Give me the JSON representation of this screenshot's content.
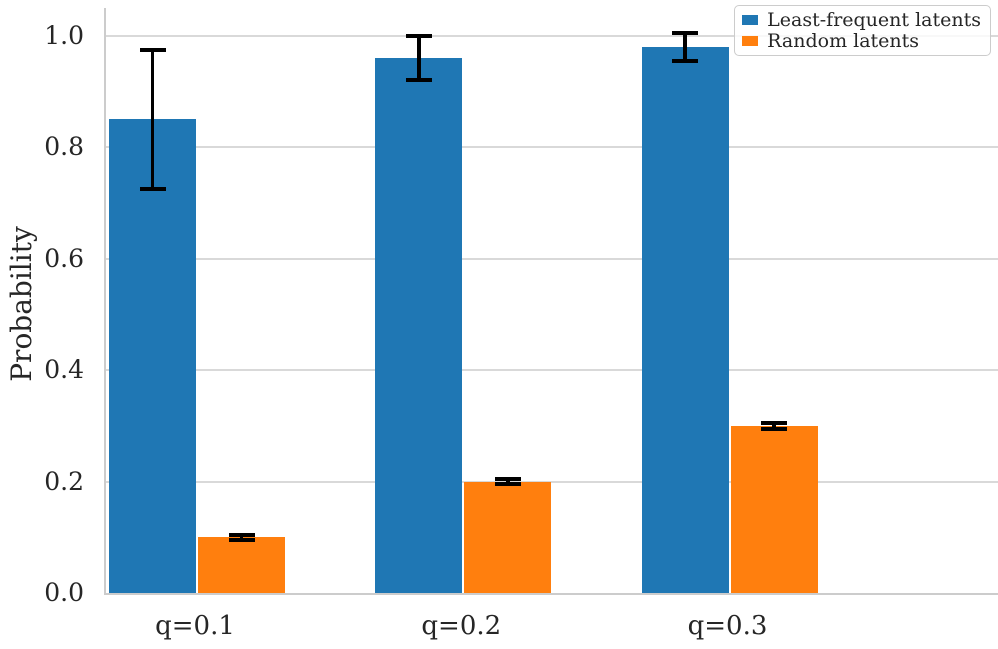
{
  "chart_data": {
    "type": "bar",
    "title": "",
    "xlabel": "",
    "ylabel": "Probability",
    "categories": [
      "q=0.1",
      "q=0.2",
      "q=0.3"
    ],
    "series": [
      {
        "name": "Least-frequent latents",
        "color": "#1f77b4",
        "values": [
          0.85,
          0.96,
          0.98
        ],
        "errors": [
          0.125,
          0.04,
          0.025
        ]
      },
      {
        "name": "Random latents",
        "color": "#ff7f0e",
        "values": [
          0.1,
          0.2,
          0.3
        ],
        "errors": [
          0.005,
          0.005,
          0.005
        ]
      }
    ],
    "yticks": [
      {
        "label": "0.0",
        "value": 0.0
      },
      {
        "label": "0.2",
        "value": 0.2
      },
      {
        "label": "0.4",
        "value": 0.4
      },
      {
        "label": "0.6",
        "value": 0.6
      },
      {
        "label": "0.8",
        "value": 0.8
      },
      {
        "label": "1.0",
        "value": 1.0
      }
    ],
    "grid_values": [
      0.2,
      0.4,
      0.6,
      0.8,
      1.0
    ],
    "ylim": [
      0,
      1.05
    ],
    "grid": true,
    "legend_position": "upper right",
    "colors": {
      "error_bar": "#000000",
      "gridline": "#d9d9d9",
      "spine": "#cccccc",
      "text": "#262626",
      "background": "#ffffff"
    }
  }
}
